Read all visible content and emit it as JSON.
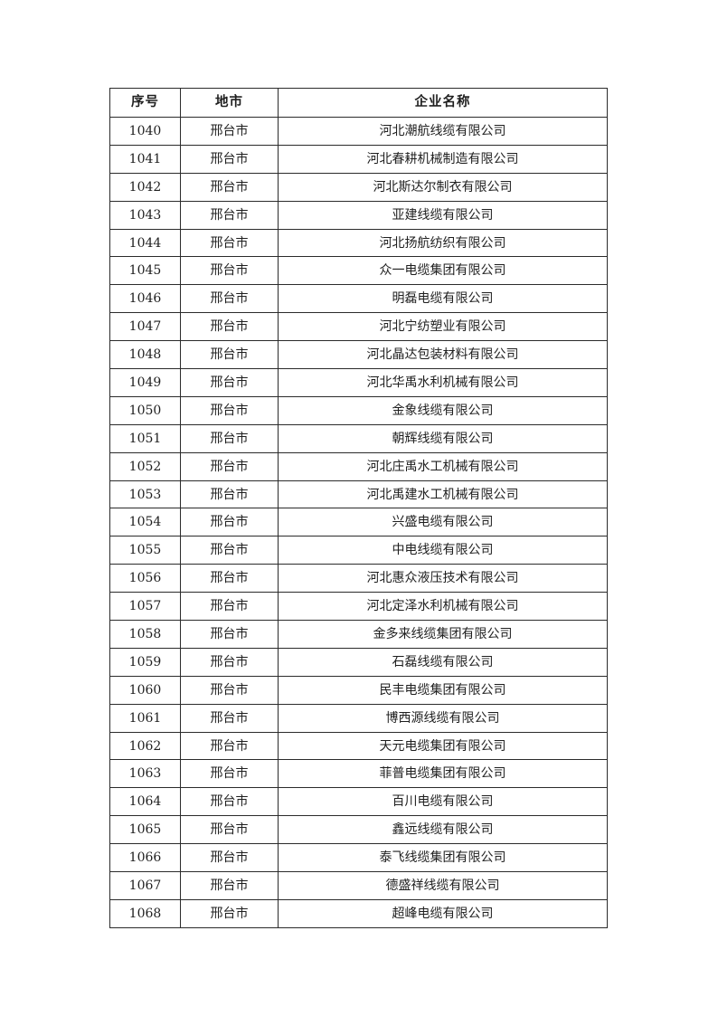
{
  "table": {
    "headers": {
      "serial": "序号",
      "city": "地市",
      "company": "企业名称"
    },
    "rows": [
      {
        "no": "1040",
        "city": "邢台市",
        "name": "河北潮航线缆有限公司"
      },
      {
        "no": "1041",
        "city": "邢台市",
        "name": "河北春耕机械制造有限公司"
      },
      {
        "no": "1042",
        "city": "邢台市",
        "name": "河北斯达尔制衣有限公司"
      },
      {
        "no": "1043",
        "city": "邢台市",
        "name": "亚建线缆有限公司"
      },
      {
        "no": "1044",
        "city": "邢台市",
        "name": "河北扬航纺织有限公司"
      },
      {
        "no": "1045",
        "city": "邢台市",
        "name": "众一电缆集团有限公司"
      },
      {
        "no": "1046",
        "city": "邢台市",
        "name": "明磊电缆有限公司"
      },
      {
        "no": "1047",
        "city": "邢台市",
        "name": "河北宁纺塑业有限公司"
      },
      {
        "no": "1048",
        "city": "邢台市",
        "name": "河北晶达包装材料有限公司"
      },
      {
        "no": "1049",
        "city": "邢台市",
        "name": "河北华禹水利机械有限公司"
      },
      {
        "no": "1050",
        "city": "邢台市",
        "name": "金象线缆有限公司"
      },
      {
        "no": "1051",
        "city": "邢台市",
        "name": "朝辉线缆有限公司"
      },
      {
        "no": "1052",
        "city": "邢台市",
        "name": "河北庄禹水工机械有限公司"
      },
      {
        "no": "1053",
        "city": "邢台市",
        "name": "河北禹建水工机械有限公司"
      },
      {
        "no": "1054",
        "city": "邢台市",
        "name": "兴盛电缆有限公司"
      },
      {
        "no": "1055",
        "city": "邢台市",
        "name": "中电线缆有限公司"
      },
      {
        "no": "1056",
        "city": "邢台市",
        "name": "河北惠众液压技术有限公司"
      },
      {
        "no": "1057",
        "city": "邢台市",
        "name": "河北定泽水利机械有限公司"
      },
      {
        "no": "1058",
        "city": "邢台市",
        "name": "金多来线缆集团有限公司"
      },
      {
        "no": "1059",
        "city": "邢台市",
        "name": "石磊线缆有限公司"
      },
      {
        "no": "1060",
        "city": "邢台市",
        "name": "民丰电缆集团有限公司"
      },
      {
        "no": "1061",
        "city": "邢台市",
        "name": "博西源线缆有限公司"
      },
      {
        "no": "1062",
        "city": "邢台市",
        "name": "天元电缆集团有限公司"
      },
      {
        "no": "1063",
        "city": "邢台市",
        "name": "菲普电缆集团有限公司"
      },
      {
        "no": "1064",
        "city": "邢台市",
        "name": "百川电缆有限公司"
      },
      {
        "no": "1065",
        "city": "邢台市",
        "name": "鑫远线缆有限公司"
      },
      {
        "no": "1066",
        "city": "邢台市",
        "name": "泰飞线缆集团有限公司"
      },
      {
        "no": "1067",
        "city": "邢台市",
        "name": "德盛祥线缆有限公司"
      },
      {
        "no": "1068",
        "city": "邢台市",
        "name": "超峰电缆有限公司"
      }
    ],
    "colors": {
      "border": "#2b2b2b",
      "text": "#1f1f1f",
      "page_background": "#ffffff"
    }
  }
}
